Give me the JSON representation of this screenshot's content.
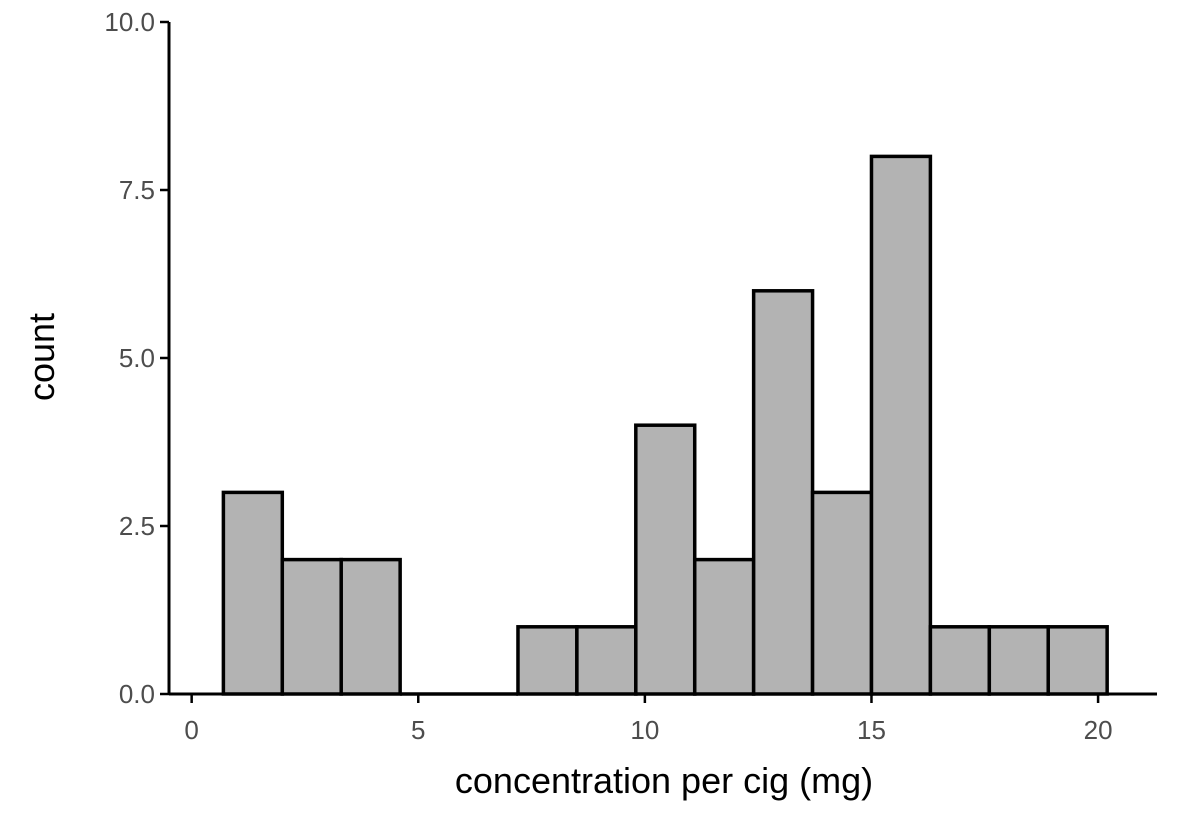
{
  "chart_data": {
    "type": "bar",
    "subtype": "histogram",
    "title": "",
    "xlabel": "concentration per cig (mg)",
    "ylabel": "count",
    "xlim": [
      -0.5,
      21.3
    ],
    "ylim": [
      0,
      10
    ],
    "x_ticks": [
      0,
      5,
      10,
      15,
      20
    ],
    "x_tick_labels": [
      "0",
      "5",
      "10",
      "15",
      "20"
    ],
    "y_ticks": [
      0,
      2.5,
      5,
      7.5,
      10
    ],
    "y_tick_labels": [
      "0.0",
      "2.5",
      "5.0",
      "7.5",
      "10.0"
    ],
    "grid": false,
    "bin_width": 1.3,
    "bins": [
      {
        "start": 0.7,
        "end": 2.0,
        "count": 3
      },
      {
        "start": 2.0,
        "end": 3.3,
        "count": 2
      },
      {
        "start": 3.3,
        "end": 4.6,
        "count": 2
      },
      {
        "start": 4.6,
        "end": 5.9,
        "count": 0
      },
      {
        "start": 5.9,
        "end": 7.2,
        "count": 0
      },
      {
        "start": 7.2,
        "end": 8.5,
        "count": 1
      },
      {
        "start": 8.5,
        "end": 9.8,
        "count": 1
      },
      {
        "start": 9.8,
        "end": 11.1,
        "count": 4
      },
      {
        "start": 11.1,
        "end": 12.4,
        "count": 2
      },
      {
        "start": 12.4,
        "end": 13.7,
        "count": 6
      },
      {
        "start": 13.7,
        "end": 15.0,
        "count": 3
      },
      {
        "start": 15.0,
        "end": 16.3,
        "count": 8
      },
      {
        "start": 16.3,
        "end": 17.6,
        "count": 1
      },
      {
        "start": 17.6,
        "end": 18.9,
        "count": 1
      },
      {
        "start": 18.9,
        "end": 20.2,
        "count": 1
      }
    ],
    "colors": {
      "bar_fill": "#b3b3b3",
      "bar_stroke": "#000000",
      "axis": "#000000",
      "tick_label": "#4d4d4d",
      "axis_title": "#000000"
    }
  }
}
